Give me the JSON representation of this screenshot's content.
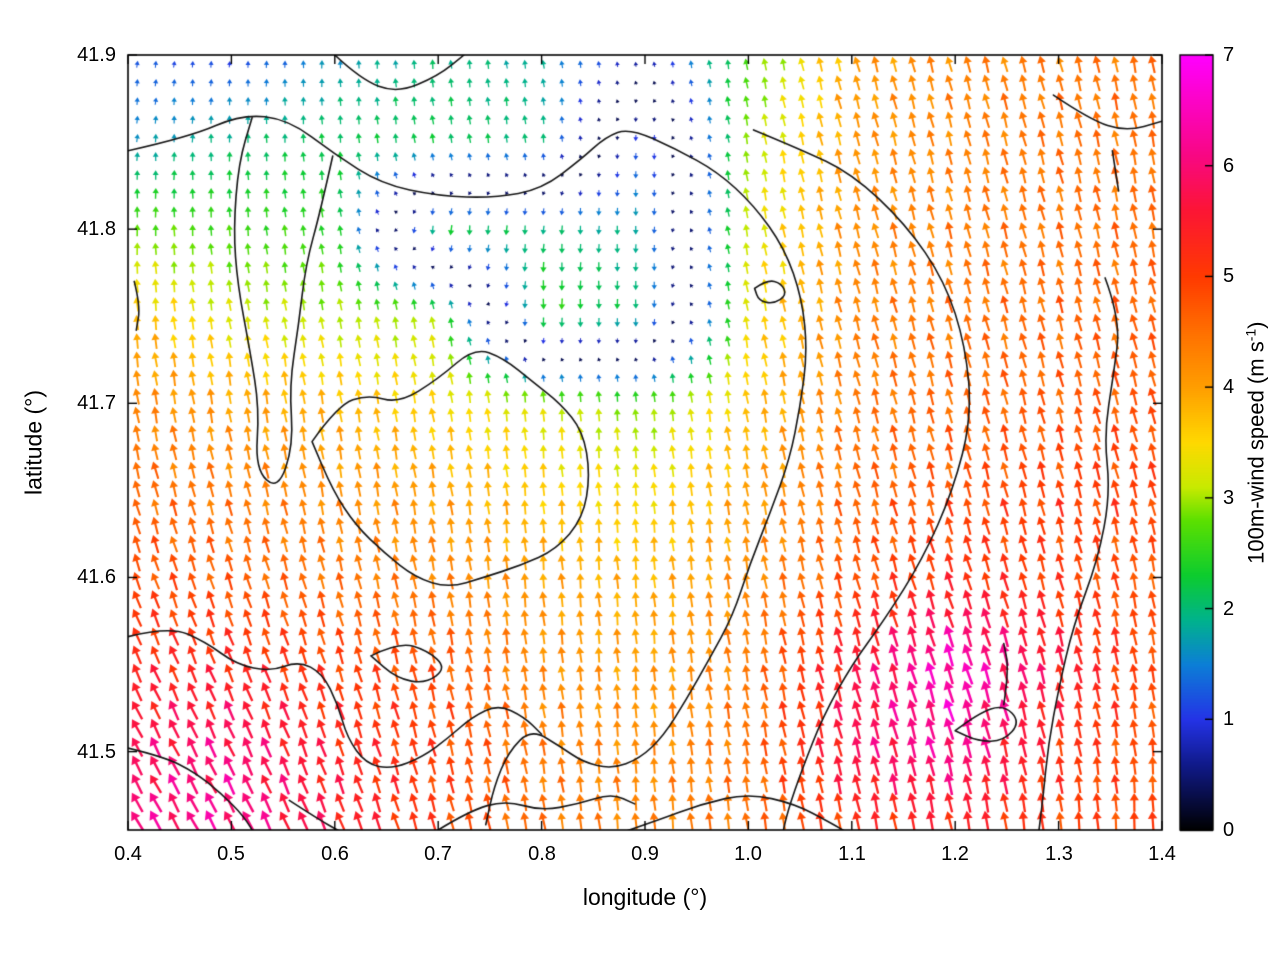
{
  "figure": {
    "background": "#ffffff",
    "xlabel": "longitude (°)",
    "ylabel": "latitude (°)",
    "x_ticks": [
      "0.4",
      "0.5",
      "0.6",
      "0.7",
      "0.8",
      "0.9",
      "1.0",
      "1.1",
      "1.2",
      "1.3",
      "1.4"
    ],
    "y_ticks": [
      "41.5",
      "41.6",
      "41.7",
      "41.8",
      "41.9"
    ],
    "colorbar": {
      "label_prefix": "100m-wind speed (m s",
      "label_sup": "-1",
      "label_suffix": ")",
      "ticks": [
        "0",
        "1",
        "2",
        "3",
        "4",
        "5",
        "6",
        "7"
      ]
    }
  },
  "chart_data": {
    "type": "quiver",
    "title": "",
    "xlabel": "longitude (°)",
    "ylabel": "latitude (°)",
    "xlim": [
      0.4,
      1.4
    ],
    "ylim": [
      41.455,
      41.9
    ],
    "grid_on": false,
    "legend": "colorbar-right",
    "colorbar_label": "100m-wind speed (m s^-1)",
    "colorbar_range": [
      0,
      7
    ],
    "colormap_stops": [
      [
        0.0,
        "#000000"
      ],
      [
        0.6,
        "#101a8c"
      ],
      [
        1.0,
        "#2433e6"
      ],
      [
        1.5,
        "#0c7fd6"
      ],
      [
        1.9,
        "#00b38c"
      ],
      [
        2.3,
        "#0ccc2f"
      ],
      [
        2.8,
        "#5ce000"
      ],
      [
        3.1,
        "#c8ea00"
      ],
      [
        3.5,
        "#ffd900"
      ],
      [
        4.0,
        "#ff9e00"
      ],
      [
        4.5,
        "#ff7000"
      ],
      [
        5.0,
        "#ff3a00"
      ],
      [
        5.6,
        "#fc1535"
      ],
      [
        6.1,
        "#f80784"
      ],
      [
        7.0,
        "#ff00ff"
      ]
    ],
    "grid": {
      "lon": [
        0.4,
        0.5,
        0.6,
        0.7,
        0.8,
        0.9,
        1.0,
        1.1,
        1.2,
        1.3,
        1.4
      ],
      "lat": [
        41.9,
        41.85,
        41.8,
        41.75,
        41.7,
        41.65,
        41.6,
        41.55,
        41.5,
        41.45
      ],
      "speed": [
        [
          1.2,
          1.0,
          1.6,
          2.0,
          1.8,
          0.8,
          2.6,
          4.0,
          4.3,
          4.4,
          4.5
        ],
        [
          1.6,
          2.0,
          2.2,
          2.2,
          2.0,
          1.4,
          3.0,
          4.1,
          4.3,
          4.5,
          4.5
        ],
        [
          2.8,
          2.6,
          2.5,
          2.3,
          2.0,
          1.8,
          3.2,
          4.2,
          4.4,
          4.5,
          4.6
        ],
        [
          3.8,
          3.2,
          3.0,
          3.0,
          2.6,
          2.0,
          3.4,
          4.3,
          4.5,
          4.6,
          4.7
        ],
        [
          4.3,
          4.0,
          3.8,
          3.5,
          3.2,
          2.8,
          3.7,
          4.4,
          4.6,
          4.7,
          4.8
        ],
        [
          4.6,
          4.4,
          4.2,
          4.0,
          3.6,
          3.4,
          4.0,
          4.6,
          4.8,
          5.0,
          5.0
        ],
        [
          4.9,
          4.7,
          4.5,
          4.3,
          4.0,
          3.8,
          4.2,
          4.8,
          5.2,
          5.0,
          4.7
        ],
        [
          5.3,
          5.3,
          5.0,
          4.8,
          4.2,
          4.0,
          4.4,
          5.6,
          6.6,
          5.6,
          4.8
        ],
        [
          5.8,
          6.0,
          5.4,
          5.0,
          4.4,
          4.2,
          4.5,
          5.8,
          6.2,
          5.2,
          4.7
        ],
        [
          6.1,
          6.2,
          5.6,
          5.0,
          4.5,
          4.3,
          4.5,
          5.0,
          5.2,
          4.9,
          5.0
        ]
      ],
      "dir_deg": [
        [
          80,
          85,
          90,
          95,
          100,
          95,
          100,
          105,
          105,
          105,
          100
        ],
        [
          85,
          90,
          95,
          100,
          95,
          270,
          100,
          105,
          105,
          105,
          100
        ],
        [
          90,
          95,
          100,
          265,
          265,
          270,
          100,
          105,
          105,
          105,
          100
        ],
        [
          95,
          100,
          100,
          100,
          270,
          270,
          100,
          105,
          105,
          105,
          105
        ],
        [
          100,
          100,
          100,
          100,
          95,
          95,
          100,
          105,
          105,
          105,
          105
        ],
        [
          105,
          105,
          100,
          100,
          95,
          95,
          100,
          105,
          105,
          105,
          105
        ],
        [
          110,
          108,
          105,
          100,
          95,
          95,
          100,
          105,
          108,
          105,
          100
        ],
        [
          115,
          112,
          108,
          102,
          98,
          95,
          100,
          105,
          108,
          105,
          100
        ],
        [
          118,
          115,
          110,
          105,
          100,
          95,
          100,
          105,
          105,
          102,
          95
        ],
        [
          120,
          118,
          112,
          105,
          100,
          95,
          98,
          100,
          100,
          95,
          90
        ]
      ]
    },
    "contours": [
      [
        [
          0.4,
          41.845
        ],
        [
          0.46,
          41.853
        ],
        [
          0.51,
          41.866
        ],
        [
          0.555,
          41.863
        ],
        [
          0.6,
          41.843
        ],
        [
          0.645,
          41.826
        ],
        [
          0.7,
          41.819
        ],
        [
          0.755,
          41.818
        ],
        [
          0.8,
          41.823
        ],
        [
          0.838,
          41.84
        ],
        [
          0.862,
          41.853
        ],
        [
          0.885,
          41.858
        ],
        [
          0.93,
          41.846
        ],
        [
          0.97,
          41.833
        ],
        [
          1.005,
          41.814
        ],
        [
          1.035,
          41.789
        ],
        [
          1.052,
          41.76
        ],
        [
          1.057,
          41.729
        ],
        [
          1.05,
          41.698
        ],
        [
          1.04,
          41.668
        ],
        [
          1.021,
          41.637
        ],
        [
          1.001,
          41.607
        ],
        [
          0.985,
          41.578
        ],
        [
          0.962,
          41.553
        ],
        [
          0.94,
          41.53
        ],
        [
          0.918,
          41.509
        ],
        [
          0.895,
          41.496
        ],
        [
          0.868,
          41.49
        ],
        [
          0.84,
          41.494
        ],
        [
          0.818,
          41.503
        ],
        [
          0.79,
          41.513
        ],
        [
          0.768,
          41.5
        ],
        [
          0.754,
          41.48
        ],
        [
          0.746,
          41.458
        ]
      ],
      [
        [
          0.598,
          41.842
        ],
        [
          0.586,
          41.81
        ],
        [
          0.572,
          41.78
        ],
        [
          0.565,
          41.745
        ],
        [
          0.556,
          41.71
        ],
        [
          0.56,
          41.676
        ],
        [
          0.545,
          41.65
        ],
        [
          0.523,
          41.662
        ],
        [
          0.527,
          41.697
        ],
        [
          0.518,
          41.73
        ],
        [
          0.506,
          41.768
        ],
        [
          0.502,
          41.8
        ],
        [
          0.507,
          41.838
        ],
        [
          0.52,
          41.864
        ]
      ],
      [
        [
          0.578,
          41.678
        ],
        [
          0.603,
          41.699
        ],
        [
          0.632,
          41.705
        ],
        [
          0.662,
          41.7
        ],
        [
          0.7,
          41.714
        ],
        [
          0.735,
          41.732
        ],
        [
          0.763,
          41.726
        ],
        [
          0.792,
          41.712
        ],
        [
          0.818,
          41.7
        ],
        [
          0.84,
          41.684
        ],
        [
          0.847,
          41.659
        ],
        [
          0.84,
          41.634
        ],
        [
          0.814,
          41.616
        ],
        [
          0.78,
          41.607
        ],
        [
          0.744,
          41.6
        ],
        [
          0.71,
          41.594
        ],
        [
          0.678,
          41.6
        ],
        [
          0.648,
          41.614
        ],
        [
          0.62,
          41.63
        ],
        [
          0.598,
          41.65
        ],
        [
          0.578,
          41.678
        ]
      ],
      [
        [
          1.005,
          41.857
        ],
        [
          1.05,
          41.846
        ],
        [
          1.1,
          41.832
        ],
        [
          1.152,
          41.803
        ],
        [
          1.19,
          41.77
        ],
        [
          1.21,
          41.733
        ],
        [
          1.216,
          41.692
        ],
        [
          1.198,
          41.65
        ],
        [
          1.168,
          41.61
        ],
        [
          1.132,
          41.576
        ],
        [
          1.1,
          41.55
        ],
        [
          1.072,
          41.52
        ],
        [
          1.052,
          41.49
        ],
        [
          1.038,
          41.466
        ],
        [
          1.032,
          41.45
        ]
      ],
      [
        [
          0.6,
          41.9
        ],
        [
          0.625,
          41.886
        ],
        [
          0.66,
          41.878
        ],
        [
          0.7,
          41.888
        ],
        [
          0.725,
          41.9
        ]
      ],
      [
        [
          1.345,
          41.772
        ],
        [
          1.36,
          41.748
        ],
        [
          1.353,
          41.716
        ],
        [
          1.344,
          41.682
        ],
        [
          1.35,
          41.648
        ],
        [
          1.338,
          41.61
        ],
        [
          1.314,
          41.572
        ],
        [
          1.3,
          41.536
        ],
        [
          1.29,
          41.504
        ],
        [
          1.285,
          41.474
        ],
        [
          1.28,
          41.45
        ]
      ],
      [
        [
          1.295,
          41.877
        ],
        [
          1.33,
          41.863
        ],
        [
          1.365,
          41.856
        ],
        [
          1.4,
          41.862
        ]
      ],
      [
        [
          1.352,
          41.845
        ],
        [
          1.358,
          41.822
        ]
      ],
      [
        [
          1.006,
          41.766
        ],
        [
          1.018,
          41.771
        ],
        [
          1.032,
          41.769
        ],
        [
          1.037,
          41.762
        ],
        [
          1.024,
          41.757
        ],
        [
          1.01,
          41.759
        ],
        [
          1.006,
          41.766
        ]
      ],
      [
        [
          0.4,
          41.566
        ],
        [
          0.44,
          41.572
        ],
        [
          0.475,
          41.563
        ],
        [
          0.505,
          41.55
        ],
        [
          0.538,
          41.546
        ],
        [
          0.565,
          41.552
        ],
        [
          0.588,
          41.545
        ],
        [
          0.603,
          41.527
        ],
        [
          0.612,
          41.508
        ],
        [
          0.63,
          41.493
        ],
        [
          0.655,
          41.49
        ],
        [
          0.685,
          41.497
        ],
        [
          0.71,
          41.508
        ],
        [
          0.733,
          41.52
        ],
        [
          0.758,
          41.527
        ],
        [
          0.783,
          41.52
        ],
        [
          0.8,
          41.51
        ]
      ],
      [
        [
          0.635,
          41.555
        ],
        [
          0.662,
          41.563
        ],
        [
          0.69,
          41.558
        ],
        [
          0.708,
          41.548
        ],
        [
          0.688,
          41.539
        ],
        [
          0.66,
          41.542
        ],
        [
          0.635,
          41.555
        ]
      ],
      [
        [
          0.4,
          41.502
        ],
        [
          0.435,
          41.497
        ],
        [
          0.465,
          41.488
        ],
        [
          0.49,
          41.476
        ],
        [
          0.512,
          41.463
        ],
        [
          0.525,
          41.45
        ]
      ],
      [
        [
          0.556,
          41.472
        ],
        [
          0.582,
          41.462
        ],
        [
          0.605,
          41.454
        ],
        [
          0.622,
          41.45
        ]
      ],
      [
        [
          0.7,
          41.455
        ],
        [
          0.73,
          41.466
        ],
        [
          0.765,
          41.472
        ],
        [
          0.8,
          41.466
        ],
        [
          0.835,
          41.47
        ],
        [
          0.868,
          41.476
        ],
        [
          0.89,
          41.47
        ]
      ],
      [
        [
          0.87,
          41.452
        ],
        [
          0.91,
          41.46
        ],
        [
          0.955,
          41.47
        ],
        [
          1.0,
          41.476
        ],
        [
          1.045,
          41.47
        ],
        [
          1.08,
          41.459
        ],
        [
          1.1,
          41.452
        ]
      ],
      [
        [
          0.406,
          41.77
        ],
        [
          0.412,
          41.756
        ],
        [
          0.408,
          41.742
        ]
      ],
      [
        [
          1.2,
          41.512
        ],
        [
          1.222,
          41.522
        ],
        [
          1.247,
          41.527
        ],
        [
          1.263,
          41.517
        ],
        [
          1.247,
          41.506
        ],
        [
          1.222,
          41.506
        ],
        [
          1.2,
          41.512
        ]
      ],
      [
        [
          1.247,
          41.527
        ],
        [
          1.252,
          41.547
        ],
        [
          1.247,
          41.562
        ]
      ]
    ],
    "arrow_density": {
      "nx": 56,
      "ny": 42
    }
  }
}
